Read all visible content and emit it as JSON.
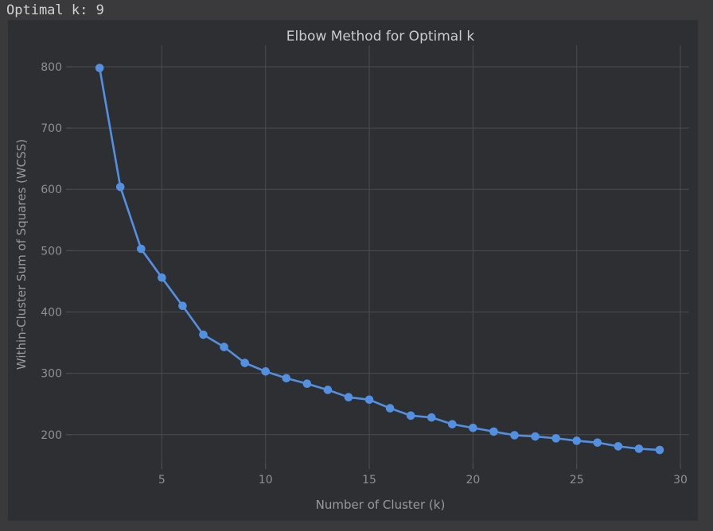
{
  "terminal": {
    "output_line": "Optimal k: 9"
  },
  "chart_data": {
    "type": "line",
    "title": "Elbow Method for Optimal k",
    "xlabel": "Number of Cluster (k)",
    "ylabel": "Within-Cluster Sum of Squares (WCSS)",
    "series": [
      {
        "name": "WCSS",
        "x": [
          2,
          3,
          4,
          5,
          6,
          7,
          8,
          9,
          10,
          11,
          12,
          13,
          14,
          15,
          16,
          17,
          18,
          19,
          20,
          21,
          22,
          23,
          24,
          25,
          26,
          27,
          28,
          29
        ],
        "y": [
          798,
          604,
          503,
          456,
          410,
          363,
          343,
          317,
          303,
          292,
          283,
          273,
          261,
          257,
          243,
          231,
          228,
          217,
          211,
          205,
          199,
          197,
          194,
          190,
          187,
          181,
          177,
          175
        ]
      }
    ],
    "xticks": [
      5,
      10,
      15,
      20,
      25,
      30
    ],
    "yticks": [
      200,
      300,
      400,
      500,
      600,
      700,
      800
    ],
    "xlim": [
      0.65,
      30.42
    ],
    "ylim": [
      153,
      835
    ],
    "grid": true,
    "legend": "none",
    "marker": "circle",
    "annotation_optimal_k": 9,
    "colors": {
      "line": "#5490e2",
      "marker": "#5490e2",
      "grid": "#4a4c4f",
      "tick_label": "#8e9093",
      "axis_label": "#98999c",
      "title": "#c9cbce",
      "figure_bg": "#2d2f32",
      "terminal_bg": "#3a3a3c",
      "terminal_text": "#d2d2d2"
    }
  }
}
